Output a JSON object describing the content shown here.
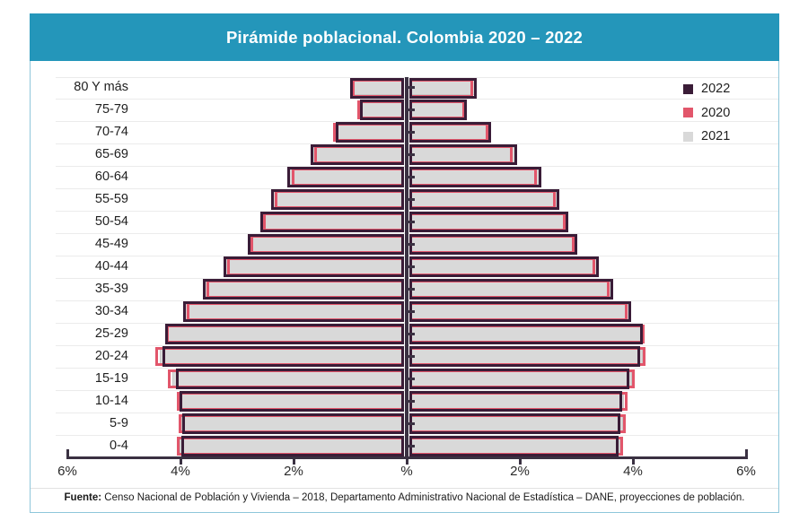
{
  "header": {
    "title": "Pirámide poblacional. Colombia 2020 – 2022",
    "background_color": "#2496ba"
  },
  "legend": {
    "position": "top-right",
    "items": [
      {
        "label": "2022",
        "color": "#3a1c37"
      },
      {
        "label": "2020",
        "color": "#e2566b"
      },
      {
        "label": "2021",
        "color": "#d9d9d9"
      }
    ]
  },
  "footer": {
    "prefix": "Fuente:",
    "text": " Censo Nacional de Población y Vivienda – 2018, Departamento Administrativo Nacional de Estadística – DANE, proyecciones de población."
  },
  "chart_data": {
    "type": "bar",
    "subtype": "population_pyramid",
    "orientation": "horizontal",
    "title": "Pirámide poblacional. Colombia 2020 – 2022",
    "unit": "%",
    "grid": "horizontal",
    "x_tick_labels": [
      "6%",
      "4%",
      "2%",
      "%",
      "2%",
      "4%",
      "6%"
    ],
    "x_axis_range_pct": [
      -6,
      6
    ],
    "age_groups": [
      "80 Y más",
      "75-79",
      "70-74",
      "65-69",
      "60-64",
      "55-59",
      "50-54",
      "45-49",
      "40-44",
      "35-39",
      "30-34",
      "25-29",
      "20-24",
      "15-19",
      "10-14",
      "5-9",
      "0-4"
    ],
    "series": [
      {
        "name": "2022",
        "style": "outline",
        "color": "#3a1c37",
        "left_pct": [
          0.95,
          0.78,
          1.21,
          1.65,
          2.06,
          2.35,
          2.54,
          2.76,
          3.19,
          3.56,
          3.9,
          4.22,
          4.27,
          4.03,
          3.97,
          3.92,
          3.94
        ],
        "right_pct": [
          1.19,
          1.02,
          1.44,
          1.9,
          2.33,
          2.65,
          2.81,
          2.97,
          3.35,
          3.6,
          3.92,
          4.13,
          4.08,
          3.89,
          3.76,
          3.73,
          3.7
        ]
      },
      {
        "name": "2020",
        "style": "outline",
        "color": "#e2566b",
        "left_pct": [
          0.92,
          0.82,
          1.25,
          1.59,
          1.99,
          2.28,
          2.49,
          2.71,
          3.12,
          3.5,
          3.84,
          4.2,
          4.39,
          4.18,
          4.02,
          3.98,
          4.02
        ],
        "right_pct": [
          1.13,
          0.98,
          1.4,
          1.83,
          2.26,
          2.58,
          2.76,
          2.92,
          3.28,
          3.54,
          3.86,
          4.16,
          4.18,
          3.99,
          3.85,
          3.83,
          3.78
        ]
      },
      {
        "name": "2021",
        "style": "fill",
        "color": "#d9d9d9",
        "left_pct": [
          0.94,
          0.79,
          1.22,
          1.62,
          2.03,
          2.32,
          2.52,
          2.74,
          3.16,
          3.53,
          3.88,
          4.22,
          4.32,
          4.09,
          3.99,
          3.94,
          3.97
        ],
        "right_pct": [
          1.17,
          1.0,
          1.42,
          1.87,
          2.3,
          2.62,
          2.79,
          2.95,
          3.32,
          3.57,
          3.89,
          4.15,
          4.12,
          3.93,
          3.8,
          3.77,
          3.73
        ]
      }
    ]
  }
}
